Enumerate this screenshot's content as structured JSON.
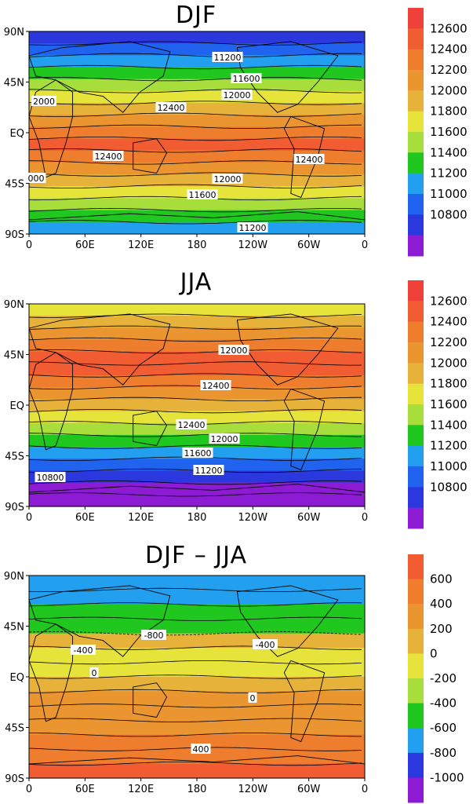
{
  "panels": [
    {
      "title": "DJF",
      "y_ticks": [
        "90N",
        "45N",
        "EQ",
        "45S",
        "90S"
      ],
      "x_ticks": [
        "0",
        "60E",
        "120E",
        "180",
        "120W",
        "60W",
        "0"
      ],
      "contour_labels": [
        "11200",
        "11600",
        "12000",
        "2000",
        "12400",
        "12400",
        "12400",
        "000",
        "12000",
        "11600",
        "11200"
      ],
      "legend_labels": [
        "12600",
        "12400",
        "12200",
        "12000",
        "11800",
        "11600",
        "11400",
        "11200",
        "11000",
        "10800"
      ],
      "colors": [
        "#f0403a",
        "#f25c32",
        "#ee7d2e",
        "#ea952f",
        "#e7b23a",
        "#e6e43a",
        "#a7de3b",
        "#1fc71f",
        "#22a0ef",
        "#1f63ee",
        "#2b38de",
        "#8d1bd3"
      ],
      "bands_top_to_bottom": [
        "#2b38de",
        "#1f63ee",
        "#22a0ef",
        "#1fc71f",
        "#a7de3b",
        "#e6e43a",
        "#e7b23a",
        "#ea952f",
        "#ee7d2e",
        "#f25c32",
        "#ee7d2e",
        "#ea952f",
        "#e7b23a",
        "#e6e43a",
        "#a7de3b",
        "#1fc71f",
        "#22a0ef"
      ]
    },
    {
      "title": "JJA",
      "y_ticks": [
        "90N",
        "45N",
        "EQ",
        "45S",
        "90S"
      ],
      "x_ticks": [
        "0",
        "60E",
        "120E",
        "180",
        "120W",
        "60W",
        "0"
      ],
      "contour_labels": [
        "12000",
        "12400",
        "12400",
        "12000",
        "11600",
        "11200",
        "10800"
      ],
      "legend_labels": [
        "12600",
        "12400",
        "12200",
        "12000",
        "11800",
        "11600",
        "11400",
        "11200",
        "11000",
        "10800"
      ],
      "colors": [
        "#f0403a",
        "#f25c32",
        "#ee7d2e",
        "#ea952f",
        "#e7b23a",
        "#e6e43a",
        "#a7de3b",
        "#1fc71f",
        "#22a0ef",
        "#1f63ee",
        "#2b38de",
        "#8d1bd3"
      ],
      "bands_top_to_bottom": [
        "#e6e43a",
        "#e7b23a",
        "#ea952f",
        "#ee7d2e",
        "#f25c32",
        "#f25c32",
        "#ee7d2e",
        "#ea952f",
        "#e7b23a",
        "#e6e43a",
        "#a7de3b",
        "#1fc71f",
        "#22a0ef",
        "#1f63ee",
        "#2b38de",
        "#8d1bd3",
        "#8d1bd3"
      ]
    },
    {
      "title": "DJF – JJA",
      "y_ticks": [
        "90N",
        "45N",
        "EQ",
        "45S",
        "90S"
      ],
      "x_ticks": [
        "0",
        "60E",
        "120E",
        "180",
        "120W",
        "60W",
        "0"
      ],
      "contour_labels": [
        "-800",
        "-400",
        "-400",
        "0",
        "0",
        "400"
      ],
      "legend_labels": [
        "600",
        "400",
        "200",
        "0",
        "-200",
        "-400",
        "-600",
        "-800",
        "-1000"
      ],
      "colors": [
        "#f25c32",
        "#ee7d2e",
        "#ea952f",
        "#e7b23a",
        "#e6e43a",
        "#a7de3b",
        "#1fc71f",
        "#22a0ef",
        "#2b38de",
        "#8d1bd3"
      ],
      "bands_top_to_bottom": [
        "#22a0ef",
        "#22a0ef",
        "#1fc71f",
        "#1fc71f",
        "#e7b23a",
        "#e6e43a",
        "#e6e43a",
        "#e7b23a",
        "#ea952f",
        "#ea952f",
        "#ea952f",
        "#ee7d2e",
        "#ee7d2e",
        "#f25c32"
      ]
    }
  ]
}
